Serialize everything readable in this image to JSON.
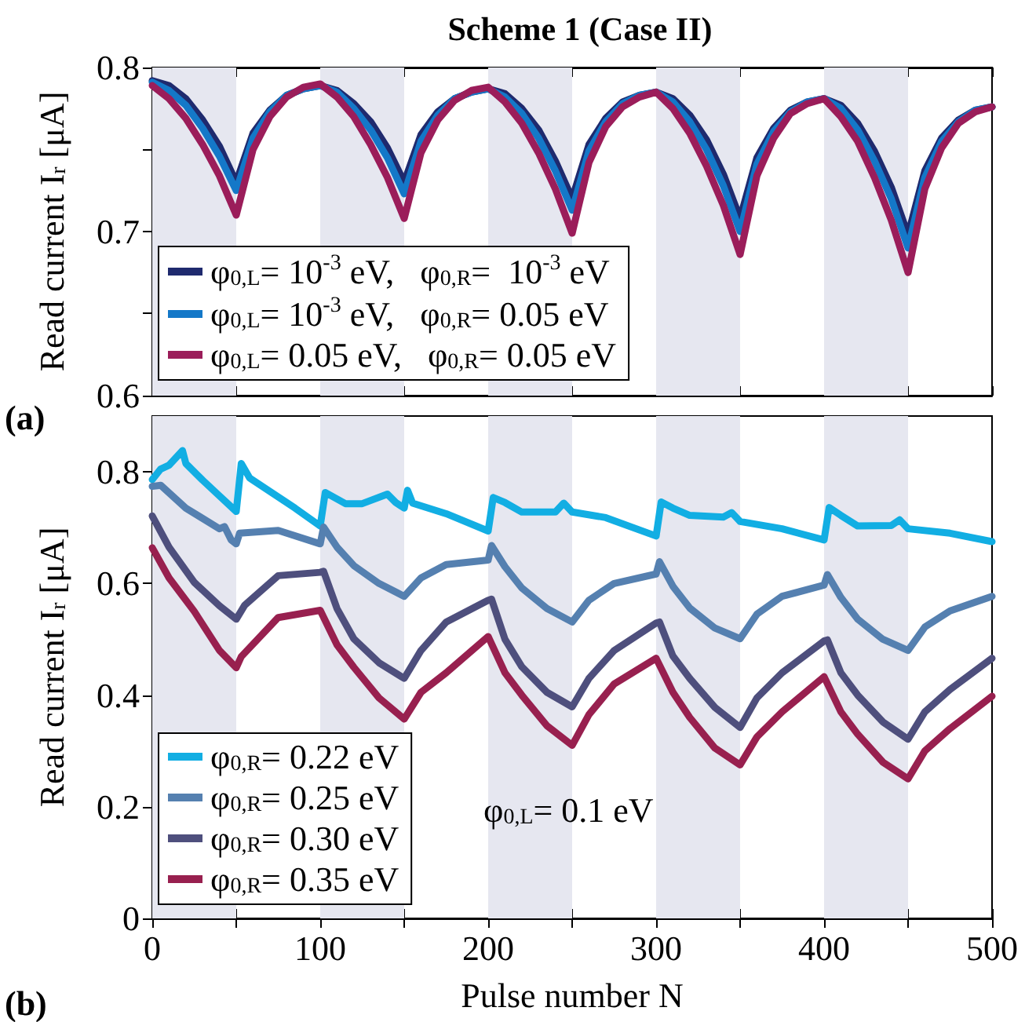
{
  "chart_data": [
    {
      "type": "line",
      "title": "Scheme 1 (Case II)",
      "ylabel": "Read current I$_{r}$ [μA]",
      "annotations": [
        "(a)"
      ],
      "x": [
        0,
        10,
        20,
        30,
        40,
        50,
        60,
        70,
        80,
        90,
        100,
        110,
        120,
        130,
        140,
        150,
        160,
        170,
        180,
        190,
        200,
        210,
        220,
        230,
        240,
        250,
        260,
        270,
        280,
        290,
        300,
        310,
        320,
        330,
        340,
        350,
        360,
        370,
        380,
        390,
        400,
        410,
        420,
        430,
        440,
        450,
        460,
        470,
        480,
        490,
        500
      ],
      "series": [
        {
          "name": "φ$_{0,L}$= 10$^{-3}$ eV,   φ$_{0,R}$=  10$^{-3}$ eV",
          "color": "#1f2a6e",
          "values": [
            0.792,
            0.789,
            0.781,
            0.768,
            0.752,
            0.73,
            0.76,
            0.774,
            0.783,
            0.787,
            0.789,
            0.786,
            0.778,
            0.767,
            0.751,
            0.73,
            0.759,
            0.773,
            0.781,
            0.785,
            0.787,
            0.784,
            0.775,
            0.762,
            0.743,
            0.72,
            0.753,
            0.769,
            0.779,
            0.783,
            0.785,
            0.781,
            0.771,
            0.756,
            0.735,
            0.708,
            0.745,
            0.763,
            0.774,
            0.779,
            0.781,
            0.777,
            0.766,
            0.749,
            0.727,
            0.698,
            0.737,
            0.757,
            0.768,
            0.774,
            0.776
          ]
        },
        {
          "name": "φ$_{0,L}$= 10$^{-3}$ eV,   φ$_{0,R}$= 0.05 eV",
          "color": "#1478c8",
          "values": [
            0.791,
            0.786,
            0.777,
            0.763,
            0.746,
            0.725,
            0.757,
            0.773,
            0.783,
            0.787,
            0.789,
            0.785,
            0.775,
            0.762,
            0.745,
            0.723,
            0.755,
            0.771,
            0.781,
            0.785,
            0.787,
            0.782,
            0.772,
            0.757,
            0.737,
            0.713,
            0.749,
            0.767,
            0.778,
            0.783,
            0.785,
            0.779,
            0.767,
            0.75,
            0.728,
            0.7,
            0.741,
            0.761,
            0.773,
            0.779,
            0.781,
            0.775,
            0.762,
            0.743,
            0.72,
            0.69,
            0.733,
            0.755,
            0.767,
            0.774,
            0.776
          ]
        },
        {
          "name": "φ$_{0,L}$= 0.05 eV,   φ$_{0,R}$= 0.05 eV",
          "color": "#9b1d5a",
          "values": [
            0.789,
            0.781,
            0.769,
            0.753,
            0.734,
            0.71,
            0.75,
            0.77,
            0.782,
            0.788,
            0.79,
            0.782,
            0.77,
            0.753,
            0.733,
            0.708,
            0.748,
            0.768,
            0.78,
            0.786,
            0.788,
            0.779,
            0.766,
            0.748,
            0.726,
            0.699,
            0.742,
            0.764,
            0.776,
            0.782,
            0.785,
            0.775,
            0.76,
            0.74,
            0.716,
            0.686,
            0.734,
            0.757,
            0.772,
            0.778,
            0.781,
            0.77,
            0.755,
            0.733,
            0.707,
            0.675,
            0.726,
            0.751,
            0.766,
            0.773,
            0.776
          ]
        }
      ],
      "xlim": [
        0,
        500
      ],
      "xticks": [
        0,
        {
          "value": 50,
          "label": null
        },
        100,
        {
          "value": 150,
          "label": null
        },
        200,
        {
          "value": 250,
          "label": null
        },
        300,
        {
          "value": 350,
          "label": null
        },
        400,
        {
          "value": 450,
          "label": null
        },
        500
      ],
      "ylim": [
        0.6,
        0.8
      ],
      "yticks": [
        0.6,
        {
          "value": 0.65,
          "label": null
        },
        0.7,
        {
          "value": 0.75,
          "label": null
        },
        0.8
      ],
      "bands": [
        {
          "axis": "x",
          "from": 0,
          "to": 50,
          "color": "#e6e7f0"
        },
        {
          "axis": "x",
          "from": 100,
          "to": 150,
          "color": "#e6e7f0"
        },
        {
          "axis": "x",
          "from": 200,
          "to": 250,
          "color": "#e6e7f0"
        },
        {
          "axis": "x",
          "from": 300,
          "to": 350,
          "color": "#e6e7f0"
        },
        {
          "axis": "x",
          "from": 400,
          "to": 450,
          "color": "#e6e7f0"
        }
      ],
      "legend": "bottom left",
      "tick_labels": "y"
    },
    {
      "type": "line",
      "xlabel": "Pulse number N",
      "ylabel": "Read current I$_{r}$ [μA]",
      "annotations": [
        "φ$_{0,L}$= 0.1 eV",
        "(b)"
      ],
      "series": [
        {
          "name": "φ$_{0,R}$= 0.22 eV",
          "color": "#12aee3",
          "x": [
            0,
            5,
            10,
            18,
            20,
            30,
            40,
            50,
            53,
            58,
            70,
            85,
            100,
            103,
            115,
            125,
            140,
            145,
            150,
            152,
            155,
            175,
            200,
            203,
            210,
            220,
            240,
            245,
            250,
            270,
            300,
            303,
            310,
            320,
            340,
            345,
            350,
            375,
            400,
            403,
            410,
            420,
            440,
            445,
            450,
            475,
            500
          ],
          "values": [
            0.786,
            0.805,
            0.812,
            0.838,
            0.815,
            0.785,
            0.757,
            0.729,
            0.815,
            0.789,
            0.765,
            0.735,
            0.703,
            0.763,
            0.743,
            0.743,
            0.76,
            0.745,
            0.735,
            0.767,
            0.744,
            0.725,
            0.694,
            0.754,
            0.745,
            0.728,
            0.728,
            0.744,
            0.728,
            0.718,
            0.685,
            0.746,
            0.735,
            0.722,
            0.719,
            0.727,
            0.711,
            0.698,
            0.678,
            0.736,
            0.722,
            0.703,
            0.704,
            0.714,
            0.698,
            0.69,
            0.675
          ]
        },
        {
          "name": "φ$_{0,R}$= 0.25 eV",
          "color": "#5580b0",
          "x": [
            0,
            5,
            20,
            40,
            43,
            47,
            50,
            52,
            75,
            100,
            102,
            110,
            120,
            135,
            150,
            160,
            175,
            200,
            202,
            210,
            220,
            235,
            250,
            260,
            275,
            300,
            302,
            310,
            320,
            335,
            350,
            360,
            375,
            400,
            402,
            410,
            420,
            435,
            450,
            460,
            475,
            500
          ],
          "values": [
            0.774,
            0.776,
            0.735,
            0.698,
            0.702,
            0.678,
            0.671,
            0.69,
            0.695,
            0.671,
            0.701,
            0.665,
            0.632,
            0.6,
            0.577,
            0.61,
            0.634,
            0.642,
            0.668,
            0.63,
            0.592,
            0.555,
            0.531,
            0.57,
            0.6,
            0.617,
            0.639,
            0.595,
            0.556,
            0.52,
            0.501,
            0.545,
            0.577,
            0.597,
            0.616,
            0.575,
            0.536,
            0.5,
            0.48,
            0.522,
            0.551,
            0.577
          ]
        },
        {
          "name": "φ$_{0,R}$= 0.30 eV",
          "color": "#4e4f7d",
          "x": [
            0,
            10,
            25,
            40,
            50,
            55,
            75,
            100,
            102,
            110,
            120,
            135,
            150,
            160,
            175,
            200,
            202,
            210,
            220,
            235,
            250,
            260,
            275,
            300,
            302,
            310,
            320,
            335,
            350,
            360,
            375,
            400,
            402,
            410,
            420,
            435,
            450,
            460,
            475,
            500
          ],
          "values": [
            0.721,
            0.665,
            0.602,
            0.56,
            0.536,
            0.561,
            0.614,
            0.62,
            0.622,
            0.555,
            0.501,
            0.458,
            0.43,
            0.48,
            0.531,
            0.57,
            0.572,
            0.5,
            0.451,
            0.405,
            0.379,
            0.43,
            0.48,
            0.529,
            0.531,
            0.47,
            0.43,
            0.378,
            0.342,
            0.395,
            0.44,
            0.497,
            0.499,
            0.44,
            0.4,
            0.352,
            0.321,
            0.37,
            0.41,
            0.466
          ]
        },
        {
          "name": "φ$_{0,R}$= 0.35 eV",
          "color": "#98204f",
          "x": [
            0,
            10,
            25,
            40,
            50,
            53,
            75,
            100,
            110,
            120,
            135,
            150,
            160,
            175,
            200,
            210,
            220,
            235,
            250,
            260,
            275,
            300,
            310,
            320,
            335,
            350,
            360,
            375,
            400,
            410,
            420,
            435,
            450,
            460,
            475,
            500
          ],
          "values": [
            0.664,
            0.61,
            0.55,
            0.48,
            0.449,
            0.469,
            0.539,
            0.552,
            0.49,
            0.45,
            0.395,
            0.357,
            0.405,
            0.44,
            0.505,
            0.44,
            0.4,
            0.345,
            0.31,
            0.365,
            0.42,
            0.466,
            0.405,
            0.36,
            0.305,
            0.275,
            0.325,
            0.37,
            0.433,
            0.37,
            0.33,
            0.28,
            0.25,
            0.3,
            0.34,
            0.398
          ]
        }
      ],
      "xlim": [
        0,
        500
      ],
      "xticks": [
        0,
        {
          "value": 50,
          "label": null
        },
        100,
        {
          "value": 150,
          "label": null
        },
        200,
        {
          "value": 250,
          "label": null
        },
        300,
        {
          "value": 350,
          "label": null
        },
        400,
        {
          "value": 450,
          "label": null
        },
        500
      ],
      "ylim": [
        0,
        0.9
      ],
      "yticks": [
        0,
        0.2,
        0.4,
        0.6,
        0.8
      ],
      "bands": [
        {
          "axis": "x",
          "from": 0,
          "to": 50,
          "color": "#e6e7f0"
        },
        {
          "axis": "x",
          "from": 100,
          "to": 150,
          "color": "#e6e7f0"
        },
        {
          "axis": "x",
          "from": 200,
          "to": 250,
          "color": "#e6e7f0"
        },
        {
          "axis": "x",
          "from": 300,
          "to": 350,
          "color": "#e6e7f0"
        },
        {
          "axis": "x",
          "from": 400,
          "to": 450,
          "color": "#e6e7f0"
        }
      ],
      "legend": "bottom left"
    }
  ]
}
